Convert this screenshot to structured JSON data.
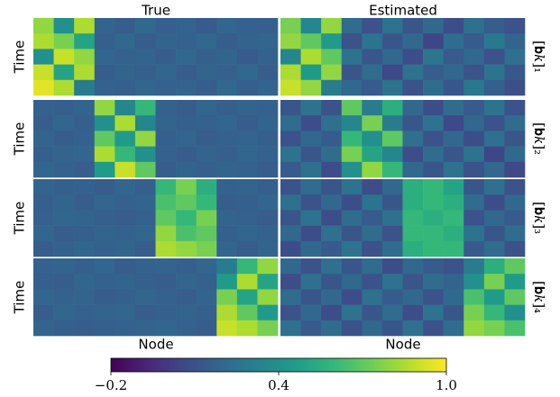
{
  "chart_data": {
    "type": "heatmap",
    "column_titles": [
      "True",
      "Estimated"
    ],
    "row_labels": [
      "[𝐛𝑘]₁",
      "[𝐛𝑘]₂",
      "[𝐛𝑘]₃",
      "[𝐛𝑘]₄"
    ],
    "y_label": "Time",
    "x_label": "Node",
    "colormap": "viridis",
    "zlim": [
      -0.2,
      1.0
    ],
    "zticks": [
      {
        "value": -0.2,
        "label": "−0.2"
      },
      0.4,
      {
        "value": 1.0,
        "label": "1.0"
      }
    ],
    "matrices": [
      [
        [
          [
            0.8,
            0.4,
            0.85,
            0.18,
            0.15,
            0.2,
            0.16,
            0.18,
            0.14,
            0.19,
            0.17,
            0.16
          ],
          [
            0.85,
            0.75,
            0.5,
            0.16,
            0.2,
            0.15,
            0.18,
            0.17,
            0.2,
            0.15,
            0.18,
            0.19
          ],
          [
            0.4,
            0.9,
            0.8,
            0.19,
            0.17,
            0.18,
            0.15,
            0.2,
            0.16,
            0.18,
            0.14,
            0.17
          ],
          [
            0.9,
            0.5,
            0.85,
            0.15,
            0.18,
            0.16,
            0.19,
            0.15,
            0.18,
            0.17,
            0.2,
            0.15
          ],
          [
            0.95,
            0.85,
            0.3,
            0.17,
            0.16,
            0.19,
            0.17,
            0.18,
            0.15,
            0.2,
            0.16,
            0.18
          ]
        ],
        [
          [
            0.75,
            0.35,
            0.8,
            0.22,
            0.1,
            0.25,
            0.12,
            0.2,
            0.08,
            0.24,
            0.15,
            0.1
          ],
          [
            0.8,
            0.7,
            0.45,
            0.1,
            0.26,
            0.12,
            0.2,
            0.05,
            0.22,
            0.14,
            0.28,
            0.18
          ],
          [
            0.35,
            0.85,
            0.7,
            0.25,
            0.12,
            0.2,
            0.08,
            0.27,
            0.14,
            0.2,
            0.1,
            0.24
          ],
          [
            0.85,
            0.45,
            0.8,
            0.12,
            0.22,
            0.06,
            0.25,
            0.15,
            0.2,
            0.1,
            0.26,
            0.13
          ],
          [
            0.9,
            0.8,
            0.3,
            0.2,
            0.14,
            0.25,
            0.1,
            0.22,
            0.12,
            0.28,
            0.16,
            0.09
          ]
        ]
      ],
      [
        [
          [
            0.17,
            0.16,
            0.18,
            0.8,
            0.35,
            0.6,
            0.17,
            0.15,
            0.19,
            0.16,
            0.18,
            0.17
          ],
          [
            0.15,
            0.19,
            0.16,
            0.4,
            0.85,
            0.35,
            0.18,
            0.16,
            0.17,
            0.19,
            0.15,
            0.18
          ],
          [
            0.18,
            0.15,
            0.17,
            0.7,
            0.45,
            0.8,
            0.16,
            0.19,
            0.15,
            0.17,
            0.18,
            0.16
          ],
          [
            0.16,
            0.18,
            0.19,
            0.85,
            0.6,
            0.4,
            0.17,
            0.15,
            0.18,
            0.16,
            0.19,
            0.17
          ],
          [
            0.19,
            0.17,
            0.15,
            0.45,
            0.9,
            0.7,
            0.15,
            0.18,
            0.16,
            0.18,
            0.17,
            0.15
          ]
        ],
        [
          [
            0.12,
            0.25,
            0.1,
            0.7,
            0.3,
            0.55,
            0.2,
            0.08,
            0.22,
            0.14,
            0.26,
            0.1
          ],
          [
            0.22,
            0.08,
            0.24,
            0.35,
            0.75,
            0.3,
            0.12,
            0.25,
            0.06,
            0.2,
            0.1,
            0.22
          ],
          [
            0.1,
            0.2,
            0.14,
            0.6,
            0.4,
            0.7,
            0.24,
            0.1,
            0.2,
            0.08,
            0.24,
            0.12
          ],
          [
            0.25,
            0.12,
            0.22,
            0.75,
            0.5,
            0.35,
            0.08,
            0.22,
            0.12,
            0.26,
            0.05,
            0.2
          ],
          [
            0.14,
            0.24,
            0.08,
            0.4,
            0.8,
            0.6,
            0.2,
            0.12,
            0.25,
            0.1,
            0.2,
            0.06
          ]
        ]
      ],
      [
        [
          [
            0.18,
            0.16,
            0.17,
            0.15,
            0.19,
            0.16,
            0.6,
            0.75,
            0.55,
            0.17,
            0.18,
            0.16
          ],
          [
            0.16,
            0.18,
            0.15,
            0.19,
            0.17,
            0.18,
            0.65,
            0.7,
            0.6,
            0.15,
            0.16,
            0.19
          ],
          [
            0.17,
            0.19,
            0.18,
            0.16,
            0.15,
            0.17,
            0.7,
            0.6,
            0.75,
            0.18,
            0.17,
            0.15
          ],
          [
            0.19,
            0.15,
            0.16,
            0.18,
            0.17,
            0.19,
            0.8,
            0.65,
            0.7,
            0.16,
            0.19,
            0.17
          ],
          [
            0.15,
            0.17,
            0.19,
            0.17,
            0.18,
            0.15,
            0.85,
            0.8,
            0.75,
            0.19,
            0.15,
            0.18
          ]
        ],
        [
          [
            0.1,
            0.22,
            0.12,
            0.25,
            0.08,
            0.2,
            0.55,
            0.6,
            0.5,
            0.12,
            0.24,
            0.1
          ],
          [
            0.24,
            0.1,
            0.2,
            0.08,
            0.26,
            0.12,
            0.55,
            0.6,
            0.55,
            0.22,
            0.08,
            0.2
          ],
          [
            0.12,
            0.25,
            0.08,
            0.22,
            0.14,
            0.24,
            0.6,
            0.55,
            0.6,
            0.1,
            0.2,
            0.14
          ],
          [
            0.2,
            0.08,
            0.24,
            0.12,
            0.22,
            0.1,
            0.6,
            0.6,
            0.55,
            0.25,
            0.12,
            0.22
          ],
          [
            0.08,
            0.2,
            0.14,
            0.26,
            0.1,
            0.22,
            0.55,
            0.6,
            0.6,
            0.14,
            0.22,
            0.1
          ]
        ]
      ],
      [
        [
          [
            0.17,
            0.18,
            0.16,
            0.19,
            0.15,
            0.17,
            0.18,
            0.16,
            0.19,
            0.3,
            0.6,
            0.8
          ],
          [
            0.16,
            0.15,
            0.19,
            0.17,
            0.18,
            0.16,
            0.15,
            0.19,
            0.17,
            0.45,
            0.85,
            0.5
          ],
          [
            0.19,
            0.17,
            0.18,
            0.15,
            0.16,
            0.19,
            0.17,
            0.15,
            0.18,
            0.75,
            0.5,
            0.8
          ],
          [
            0.15,
            0.19,
            0.17,
            0.18,
            0.19,
            0.15,
            0.16,
            0.18,
            0.16,
            0.85,
            0.7,
            0.45
          ],
          [
            0.18,
            0.16,
            0.15,
            0.16,
            0.17,
            0.18,
            0.19,
            0.17,
            0.15,
            0.9,
            0.85,
            0.75
          ]
        ],
        [
          [
            0.2,
            0.1,
            0.24,
            0.12,
            0.22,
            0.08,
            0.2,
            0.14,
            0.1,
            0.3,
            0.55,
            0.7
          ],
          [
            0.08,
            0.24,
            0.12,
            0.2,
            0.1,
            0.25,
            0.12,
            0.22,
            0.18,
            0.4,
            0.75,
            0.45
          ],
          [
            0.22,
            0.12,
            0.2,
            0.08,
            0.24,
            0.14,
            0.2,
            0.1,
            0.2,
            0.65,
            0.45,
            0.7
          ],
          [
            0.1,
            0.2,
            0.08,
            0.25,
            0.12,
            0.22,
            0.08,
            0.25,
            0.12,
            0.75,
            0.6,
            0.4
          ],
          [
            0.24,
            0.14,
            0.22,
            0.1,
            0.2,
            0.12,
            0.24,
            0.1,
            0.22,
            0.8,
            0.75,
            0.65
          ]
        ]
      ]
    ]
  }
}
